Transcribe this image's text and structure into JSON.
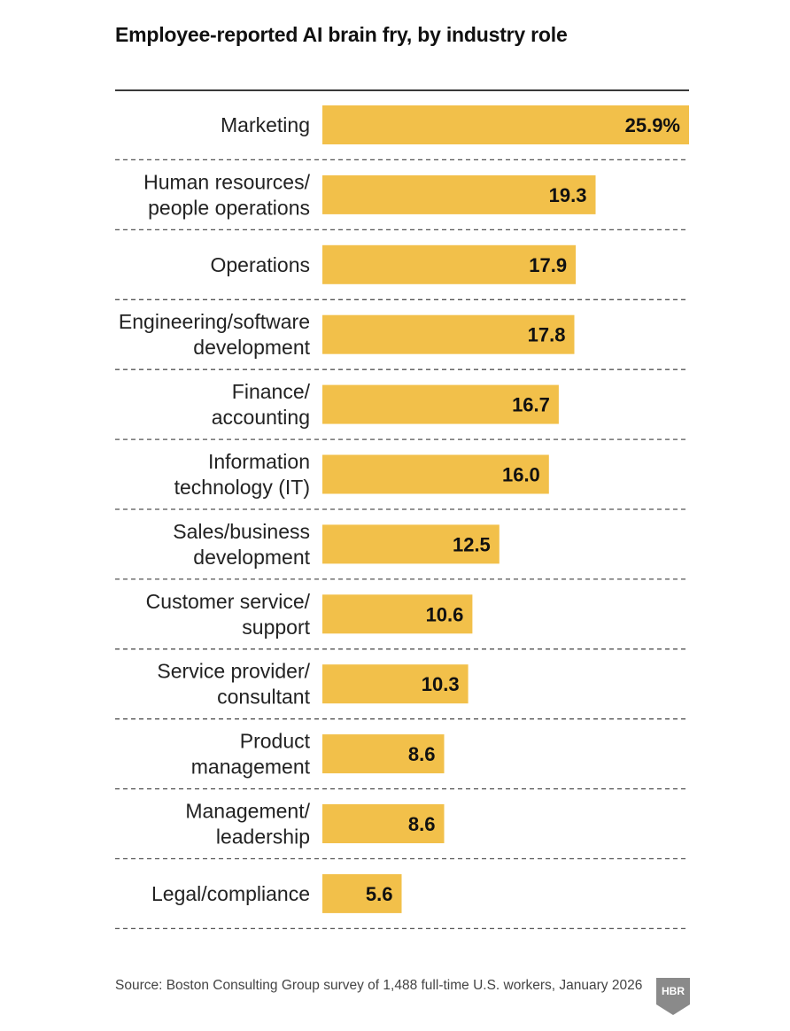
{
  "chart_data": {
    "type": "bar",
    "orientation": "horizontal",
    "title": "Employee-reported AI brain fry, by industry role",
    "categories": [
      [
        "Marketing"
      ],
      [
        "Human resources/",
        "people operations"
      ],
      [
        "Operations"
      ],
      [
        "Engineering/software",
        "development"
      ],
      [
        "Finance/",
        "accounting"
      ],
      [
        "Information",
        "technology (IT)"
      ],
      [
        "Sales/business",
        "development"
      ],
      [
        "Customer service/",
        "support"
      ],
      [
        "Service provider/",
        "consultant"
      ],
      [
        "Product",
        "management"
      ],
      [
        "Management/",
        "leadership"
      ],
      [
        "Legal/compliance"
      ]
    ],
    "values": [
      25.9,
      19.3,
      17.9,
      17.8,
      16.7,
      16.0,
      12.5,
      10.6,
      10.3,
      8.6,
      8.6,
      5.6
    ],
    "value_labels": [
      "25.9%",
      "19.3",
      "17.9",
      "17.8",
      "16.7",
      "16.0",
      "12.5",
      "10.6",
      "10.3",
      "8.6",
      "8.6",
      "5.6"
    ],
    "xlim": [
      0,
      25.9
    ],
    "unit": "%",
    "grid": false,
    "bar_color": "#f2c04a"
  },
  "source": "Source: Boston Consulting Group survey of 1,488 full-time U.S. workers, January 2026",
  "logo": {
    "text": "HBR",
    "icon": "hbr-shield-logo",
    "color": "#8a8a8a"
  }
}
